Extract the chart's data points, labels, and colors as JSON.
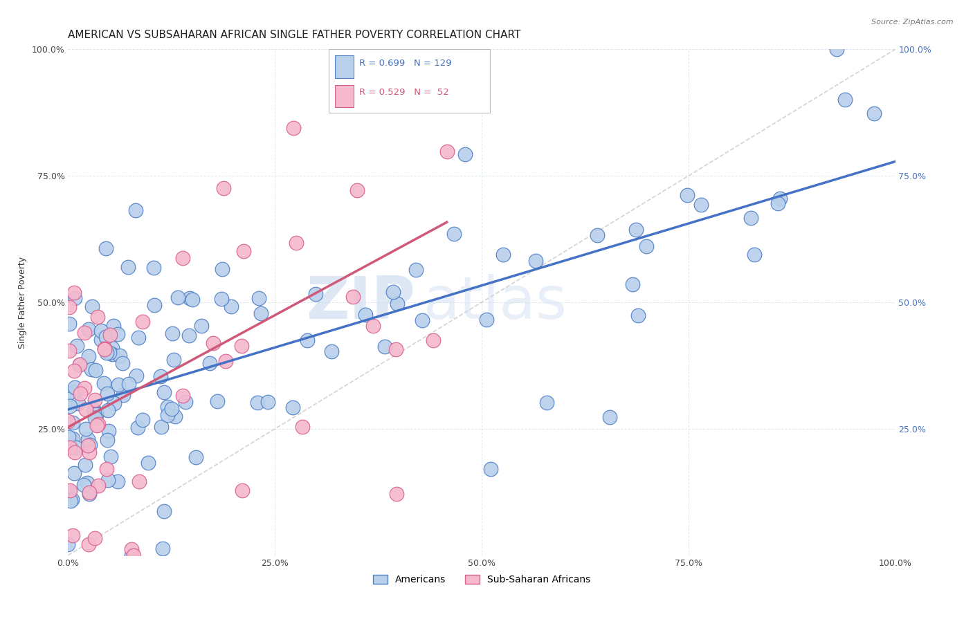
{
  "title": "AMERICAN VS SUBSAHARAN AFRICAN SINGLE FATHER POVERTY CORRELATION CHART",
  "source": "Source: ZipAtlas.com",
  "ylabel": "Single Father Poverty",
  "xlim": [
    0,
    1
  ],
  "ylim": [
    0,
    1
  ],
  "xticks": [
    0,
    0.25,
    0.5,
    0.75,
    1.0
  ],
  "yticks": [
    0,
    0.25,
    0.5,
    0.75,
    1.0
  ],
  "xticklabels": [
    "0.0%",
    "25.0%",
    "50.0%",
    "75.0%",
    "100.0%"
  ],
  "yticklabels": [
    "",
    "25.0%",
    "50.0%",
    "75.0%",
    "100.0%"
  ],
  "watermark_zip": "ZIP",
  "watermark_atlas": "atlas",
  "legend_labels": [
    "Americans",
    "Sub-Saharan Africans"
  ],
  "R_american": 0.699,
  "N_american": 129,
  "R_african": 0.529,
  "N_african": 52,
  "american_color": "#b8d0ea",
  "african_color": "#f5b8cc",
  "american_edge_color": "#5080c8",
  "african_edge_color": "#d86090",
  "american_line_color": "#4472C4",
  "african_line_color": "#d05878",
  "diagonal_color": "#c8c8c8",
  "background_color": "#ffffff",
  "grid_color": "#dde8f0",
  "right_tick_color": "#4472C4",
  "title_fontsize": 11,
  "axis_label_fontsize": 9,
  "tick_fontsize": 9
}
